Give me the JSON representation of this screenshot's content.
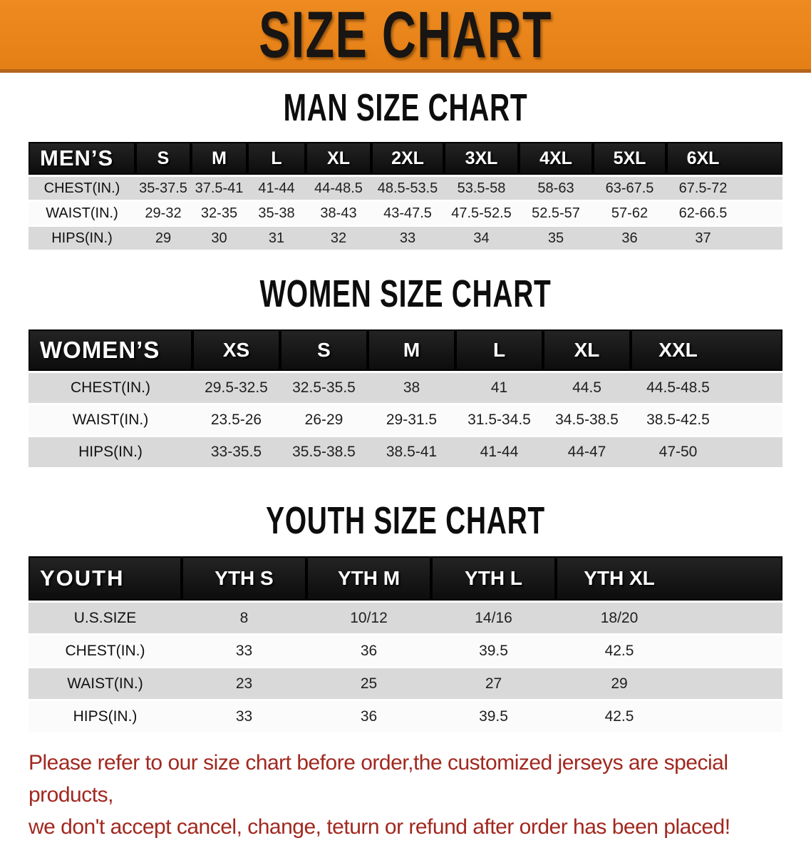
{
  "banner": {
    "title": "SIZE CHART",
    "bg_color": "#e8821b",
    "text_color": "#181512"
  },
  "sections": [
    {
      "title": "MAN SIZE CHART",
      "header_label": "MEN’S",
      "columns": [
        "S",
        "M",
        "L",
        "XL",
        "2XL",
        "3XL",
        "4XL",
        "5XL",
        "6XL"
      ],
      "rows": [
        {
          "label": "CHEST(IN.)",
          "values": [
            "35-37.5",
            "37.5-41",
            "41-44",
            "44-48.5",
            "48.5-53.5",
            "53.5-58",
            "58-63",
            "63-67.5",
            "67.5-72"
          ]
        },
        {
          "label": "WAIST(IN.)",
          "values": [
            "29-32",
            "32-35",
            "35-38",
            "38-43",
            "43-47.5",
            "47.5-52.5",
            "52.5-57",
            "57-62",
            "62-66.5"
          ]
        },
        {
          "label": "HIPS(IN.)",
          "values": [
            "29",
            "30",
            "31",
            "32",
            "33",
            "34",
            "35",
            "36",
            "37"
          ]
        }
      ]
    },
    {
      "title": "WOMEN SIZE CHART",
      "header_label": "WOMEN’S",
      "columns": [
        "XS",
        "S",
        "M",
        "L",
        "XL",
        "XXL"
      ],
      "rows": [
        {
          "label": "CHEST(IN.)",
          "values": [
            "29.5-32.5",
            "32.5-35.5",
            "38",
            "41",
            "44.5",
            "44.5-48.5"
          ]
        },
        {
          "label": "WAIST(IN.)",
          "values": [
            "23.5-26",
            "26-29",
            "29-31.5",
            "31.5-34.5",
            "34.5-38.5",
            "38.5-42.5"
          ]
        },
        {
          "label": "HIPS(IN.)",
          "values": [
            "33-35.5",
            "35.5-38.5",
            "38.5-41",
            "41-44",
            "44-47",
            "47-50"
          ]
        }
      ]
    },
    {
      "title": "YOUTH SIZE CHART",
      "header_label": "YOUTH",
      "columns": [
        "YTH S",
        "YTH M",
        "YTH L",
        "YTH XL"
      ],
      "rows": [
        {
          "label": "U.S.SIZE",
          "values": [
            "8",
            "10/12",
            "14/16",
            "18/20"
          ]
        },
        {
          "label": "CHEST(IN.)",
          "values": [
            "33",
            "36",
            "39.5",
            "42.5"
          ]
        },
        {
          "label": "WAIST(IN.)",
          "values": [
            "23",
            "25",
            "27",
            "29"
          ]
        },
        {
          "label": "HIPS(IN.)",
          "values": [
            "33",
            "36",
            "39.5",
            "42.5"
          ]
        }
      ]
    }
  ],
  "footer": {
    "line1": "Please refer to our size chart before order,the customized jerseys are special products,",
    "line2": "we don't accept cancel, change, teturn or refund after order has been placed!",
    "text_color": "#a1281f"
  }
}
